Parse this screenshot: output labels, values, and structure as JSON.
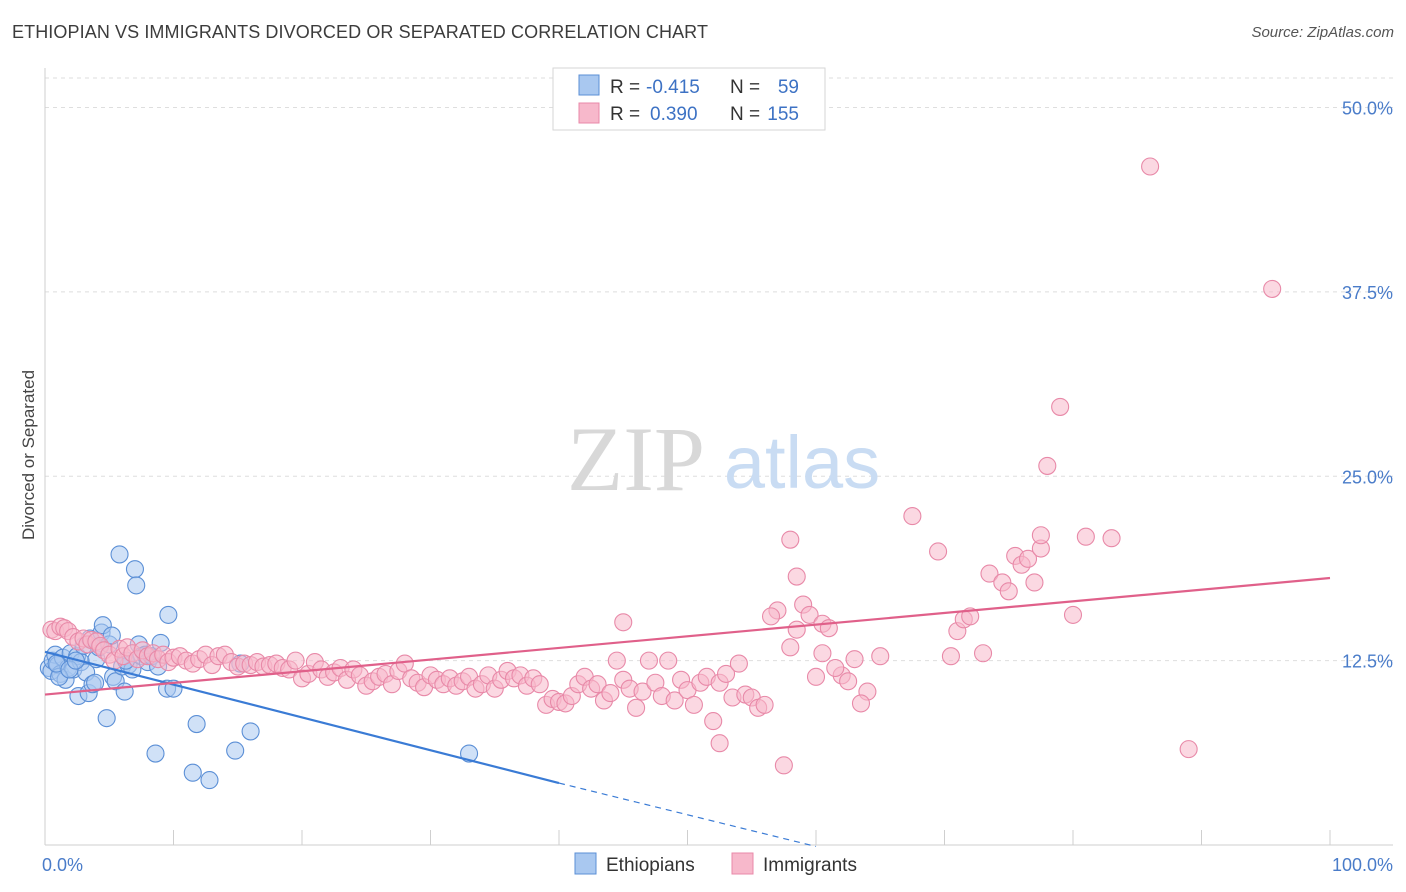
{
  "title": "ETHIOPIAN VS IMMIGRANTS DIVORCED OR SEPARATED CORRELATION CHART",
  "source": "Source: ZipAtlas.com",
  "watermark": {
    "zip": "ZIP",
    "atlas": "atlas"
  },
  "legend_top": [
    {
      "r_label": "R =",
      "r_value": "-0.415",
      "n_label": "N =",
      "n_value": "59",
      "color": "#a9c8f0",
      "stroke": "#5b8fd6"
    },
    {
      "r_label": "R =",
      "r_value": "0.390",
      "n_label": "N =",
      "n_value": "155",
      "color": "#f7b8cb",
      "stroke": "#e889a8"
    }
  ],
  "legend_bottom": [
    {
      "label": "Ethiopians",
      "color": "#a9c8f0",
      "stroke": "#5b8fd6"
    },
    {
      "label": "Immigrants",
      "color": "#f7b8cb",
      "stroke": "#e889a8"
    }
  ],
  "chart_data": {
    "type": "scatter",
    "ylabel": "Divorced or Separated",
    "xlim": [
      0,
      100
    ],
    "ylim": [
      0,
      52
    ],
    "y_ticks": [
      {
        "value": 12.5,
        "label": "12.5%"
      },
      {
        "value": 25.0,
        "label": "25.0%"
      },
      {
        "value": 37.5,
        "label": "37.5%"
      },
      {
        "value": 50.0,
        "label": "50.0%"
      }
    ],
    "x_tick_labels": [
      {
        "value": 0,
        "label": "0.0%"
      },
      {
        "value": 100,
        "label": "100.0%"
      }
    ],
    "series": [
      {
        "name": "Ethiopians",
        "color": "#a9c8f0",
        "stroke": "#5b8fd6",
        "trend": {
          "x0": 0,
          "y0": 13.1,
          "x1": 40,
          "y1": 4.2,
          "dash_to_x": 60,
          "dash_to_y": -0.1,
          "color": "#3a7bd5"
        },
        "points": [
          [
            0.3,
            12.0
          ],
          [
            0.5,
            11.8
          ],
          [
            0.6,
            12.5
          ],
          [
            0.8,
            12.9
          ],
          [
            1.0,
            12.2
          ],
          [
            1.2,
            11.6
          ],
          [
            1.4,
            12.7
          ],
          [
            1.6,
            11.2
          ],
          [
            1.8,
            12.0
          ],
          [
            2.0,
            13.0
          ],
          [
            2.2,
            11.9
          ],
          [
            2.5,
            12.8
          ],
          [
            2.6,
            10.1
          ],
          [
            2.8,
            12.4
          ],
          [
            3.0,
            13.5
          ],
          [
            3.2,
            11.7
          ],
          [
            3.4,
            10.3
          ],
          [
            3.5,
            14.0
          ],
          [
            3.7,
            10.9
          ],
          [
            4.0,
            12.6
          ],
          [
            4.2,
            13.4
          ],
          [
            4.4,
            14.4
          ],
          [
            4.5,
            14.9
          ],
          [
            4.8,
            8.6
          ],
          [
            5.0,
            13.6
          ],
          [
            5.2,
            14.2
          ],
          [
            5.3,
            11.4
          ],
          [
            5.5,
            11.1
          ],
          [
            5.8,
            19.7
          ],
          [
            6.0,
            12.1
          ],
          [
            6.2,
            10.4
          ],
          [
            6.5,
            12.2
          ],
          [
            6.8,
            11.9
          ],
          [
            7.0,
            18.7
          ],
          [
            7.1,
            17.6
          ],
          [
            7.3,
            13.6
          ],
          [
            7.5,
            12.8
          ],
          [
            7.8,
            12.9
          ],
          [
            8.0,
            12.4
          ],
          [
            8.3,
            12.8
          ],
          [
            8.6,
            6.2
          ],
          [
            8.8,
            12.1
          ],
          [
            9.0,
            13.7
          ],
          [
            9.5,
            10.6
          ],
          [
            9.6,
            15.6
          ],
          [
            10.0,
            10.6
          ],
          [
            11.5,
            4.9
          ],
          [
            11.8,
            8.2
          ],
          [
            12.8,
            4.4
          ],
          [
            14.8,
            6.4
          ],
          [
            16.0,
            7.7
          ],
          [
            15.2,
            12.3
          ],
          [
            1.1,
            11.4
          ],
          [
            0.9,
            12.3
          ],
          [
            1.9,
            11.9
          ],
          [
            2.4,
            12.5
          ],
          [
            3.9,
            11.0
          ],
          [
            6.3,
            12.5
          ],
          [
            33.0,
            6.2
          ]
        ]
      },
      {
        "name": "Immigrants",
        "color": "#f7b8cb",
        "stroke": "#e889a8",
        "trend": {
          "x0": 0,
          "y0": 10.2,
          "x1": 100,
          "y1": 18.1,
          "color": "#e0608a"
        },
        "points": [
          [
            0.5,
            14.6
          ],
          [
            0.8,
            14.5
          ],
          [
            1.2,
            14.8
          ],
          [
            1.5,
            14.7
          ],
          [
            1.8,
            14.5
          ],
          [
            2.2,
            14.1
          ],
          [
            2.6,
            13.8
          ],
          [
            3.0,
            14.0
          ],
          [
            3.3,
            13.6
          ],
          [
            3.6,
            13.9
          ],
          [
            4.0,
            13.8
          ],
          [
            4.3,
            13.5
          ],
          [
            4.6,
            13.2
          ],
          [
            5.0,
            12.9
          ],
          [
            5.4,
            12.5
          ],
          [
            5.8,
            13.3
          ],
          [
            6.1,
            12.8
          ],
          [
            6.4,
            13.4
          ],
          [
            6.8,
            13.0
          ],
          [
            7.2,
            12.6
          ],
          [
            7.6,
            13.2
          ],
          [
            8.0,
            12.8
          ],
          [
            8.4,
            13.0
          ],
          [
            8.8,
            12.6
          ],
          [
            9.2,
            12.9
          ],
          [
            9.6,
            12.4
          ],
          [
            10.0,
            12.7
          ],
          [
            10.5,
            12.8
          ],
          [
            11.0,
            12.5
          ],
          [
            11.5,
            12.3
          ],
          [
            12.0,
            12.6
          ],
          [
            12.5,
            12.9
          ],
          [
            13.0,
            12.2
          ],
          [
            13.5,
            12.8
          ],
          [
            14.0,
            12.9
          ],
          [
            14.5,
            12.4
          ],
          [
            15.0,
            12.1
          ],
          [
            15.5,
            12.3
          ],
          [
            16.0,
            12.2
          ],
          [
            16.5,
            12.4
          ],
          [
            17.0,
            12.1
          ],
          [
            17.5,
            12.2
          ],
          [
            18.0,
            12.3
          ],
          [
            18.5,
            12.0
          ],
          [
            19.0,
            11.9
          ],
          [
            19.5,
            12.5
          ],
          [
            20.0,
            11.3
          ],
          [
            20.5,
            11.6
          ],
          [
            21.0,
            12.4
          ],
          [
            21.5,
            11.9
          ],
          [
            22.0,
            11.4
          ],
          [
            22.5,
            11.7
          ],
          [
            23.0,
            12.0
          ],
          [
            23.5,
            11.2
          ],
          [
            24.0,
            11.9
          ],
          [
            24.5,
            11.5
          ],
          [
            25.0,
            10.8
          ],
          [
            25.5,
            11.1
          ],
          [
            26.0,
            11.4
          ],
          [
            26.5,
            11.6
          ],
          [
            27.0,
            10.9
          ],
          [
            27.5,
            11.8
          ],
          [
            28.0,
            12.3
          ],
          [
            28.5,
            11.3
          ],
          [
            29.0,
            11.0
          ],
          [
            29.5,
            10.7
          ],
          [
            30.0,
            11.5
          ],
          [
            30.5,
            11.2
          ],
          [
            31.0,
            10.9
          ],
          [
            31.5,
            11.3
          ],
          [
            32.0,
            10.8
          ],
          [
            32.5,
            11.1
          ],
          [
            33.0,
            11.4
          ],
          [
            33.5,
            10.6
          ],
          [
            34.0,
            10.9
          ],
          [
            34.5,
            11.5
          ],
          [
            35.0,
            10.6
          ],
          [
            35.5,
            11.2
          ],
          [
            36.0,
            11.8
          ],
          [
            36.5,
            11.3
          ],
          [
            37.0,
            11.5
          ],
          [
            37.5,
            10.8
          ],
          [
            38.0,
            11.3
          ],
          [
            38.5,
            10.9
          ],
          [
            39.0,
            9.5
          ],
          [
            39.5,
            9.9
          ],
          [
            40.0,
            9.7
          ],
          [
            40.5,
            9.6
          ],
          [
            41.0,
            10.1
          ],
          [
            41.5,
            10.9
          ],
          [
            42.0,
            11.4
          ],
          [
            42.5,
            10.6
          ],
          [
            43.0,
            10.9
          ],
          [
            43.5,
            9.8
          ],
          [
            44.0,
            10.3
          ],
          [
            44.5,
            12.5
          ],
          [
            45.0,
            11.2
          ],
          [
            45.5,
            10.6
          ],
          [
            46.0,
            9.3
          ],
          [
            46.5,
            10.4
          ],
          [
            47.0,
            12.5
          ],
          [
            47.5,
            11.0
          ],
          [
            48.0,
            10.1
          ],
          [
            48.5,
            12.5
          ],
          [
            49.0,
            9.8
          ],
          [
            49.5,
            11.2
          ],
          [
            50.0,
            10.5
          ],
          [
            50.5,
            9.5
          ],
          [
            51.0,
            11.0
          ],
          [
            51.5,
            11.4
          ],
          [
            52.0,
            8.4
          ],
          [
            52.5,
            11.0
          ],
          [
            53.0,
            11.6
          ],
          [
            53.5,
            10.0
          ],
          [
            54.0,
            12.3
          ],
          [
            54.5,
            10.2
          ],
          [
            55.0,
            10.0
          ],
          [
            55.5,
            9.3
          ],
          [
            56.0,
            9.5
          ],
          [
            45.0,
            15.1
          ],
          [
            52.5,
            6.9
          ],
          [
            57.5,
            5.4
          ],
          [
            57.0,
            15.9
          ],
          [
            58.0,
            13.4
          ],
          [
            56.5,
            15.5
          ],
          [
            58.5,
            14.6
          ],
          [
            59.0,
            16.3
          ],
          [
            59.5,
            15.6
          ],
          [
            60.0,
            11.4
          ],
          [
            60.5,
            15.0
          ],
          [
            61.0,
            14.7
          ],
          [
            62.0,
            11.5
          ],
          [
            63.0,
            12.6
          ],
          [
            64.0,
            10.4
          ],
          [
            65.0,
            12.8
          ],
          [
            58.0,
            20.7
          ],
          [
            58.5,
            18.2
          ],
          [
            62.5,
            11.1
          ],
          [
            67.5,
            22.3
          ],
          [
            69.5,
            19.9
          ],
          [
            70.5,
            12.8
          ],
          [
            71.0,
            14.5
          ],
          [
            71.5,
            15.3
          ],
          [
            72.0,
            15.5
          ],
          [
            73.0,
            13.0
          ],
          [
            73.5,
            18.4
          ],
          [
            74.5,
            17.8
          ],
          [
            75.0,
            17.2
          ],
          [
            75.5,
            19.6
          ],
          [
            76.0,
            19.0
          ],
          [
            76.5,
            19.4
          ],
          [
            77.0,
            17.8
          ],
          [
            77.5,
            20.1
          ],
          [
            77.5,
            21.0
          ],
          [
            78.0,
            25.7
          ],
          [
            79.0,
            29.7
          ],
          [
            80.0,
            15.6
          ],
          [
            81.0,
            20.9
          ],
          [
            83.0,
            20.8
          ],
          [
            86.0,
            46.0
          ],
          [
            89.0,
            6.5
          ],
          [
            95.5,
            37.7
          ],
          [
            60.5,
            13.0
          ],
          [
            61.5,
            12.0
          ],
          [
            63.5,
            9.6
          ]
        ]
      }
    ]
  }
}
